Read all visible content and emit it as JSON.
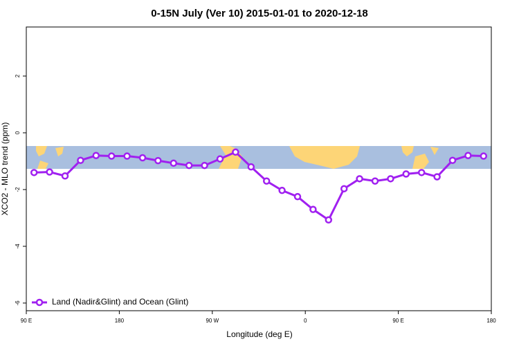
{
  "chart_data": {
    "type": "line",
    "title": "0-15N July (Ver 10)   2015-01-01 to 2020-12-18",
    "x_label": "Longitude (deg E)",
    "y_label": "XCO2 - MLO trend (ppm)",
    "xlim": [
      90,
      540
    ],
    "xticks": [
      {
        "value": 90,
        "label": "90 E"
      },
      180,
      {
        "value": 270,
        "label": "90 W"
      },
      {
        "value": 360,
        "label": "0"
      },
      {
        "value": 450,
        "label": "90 E"
      },
      {
        "value": 540,
        "label": "180"
      }
    ],
    "ylim": [
      -6.27,
      3.73
    ],
    "yticks": [
      2,
      0,
      -2,
      -4,
      -6
    ],
    "legend": "bottom-left",
    "series": [
      {
        "name": "Land (Nadir&Glint) and Ocean (Glint)",
        "color": "#a020f0",
        "x": [
          97.5,
          112.5,
          127.5,
          142.5,
          157.5,
          172.5,
          187.5,
          202.5,
          217.5,
          232.5,
          247.5,
          262.5,
          277.5,
          292.5,
          307.5,
          322.5,
          337.5,
          352.5,
          367.5,
          382.5,
          397.5,
          412.5,
          427.5,
          442.5,
          457.5,
          472.5,
          487.5,
          502.5,
          517.5,
          532.5
        ],
        "values": [
          -1.4,
          -1.38,
          -1.52,
          -0.97,
          -0.8,
          -0.82,
          -0.82,
          -0.88,
          -0.98,
          -1.07,
          -1.15,
          -1.15,
          -0.92,
          -0.68,
          -1.2,
          -1.7,
          -2.03,
          -2.25,
          -2.7,
          -3.07,
          -1.97,
          -1.62,
          -1.7,
          -1.62,
          -1.45,
          -1.4,
          -1.55,
          -0.97,
          -0.8,
          -0.82
        ]
      }
    ]
  }
}
